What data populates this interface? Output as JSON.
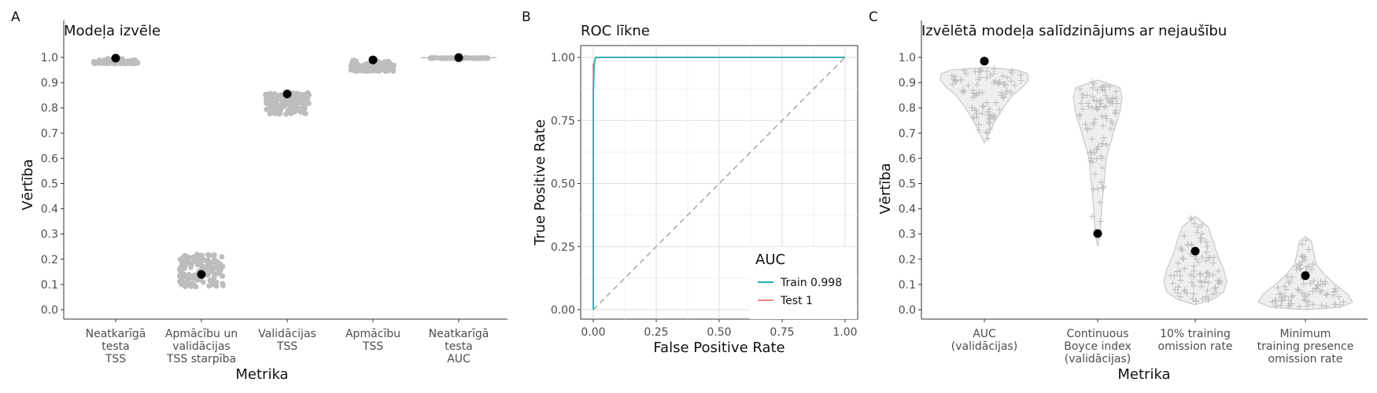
{
  "chart_data": [
    {
      "panel": "A",
      "type": "scatter",
      "title": "Modeļa izvēle",
      "xlabel": "Metrika",
      "ylabel": "Vērtība",
      "ylim": [
        0,
        1
      ],
      "yticks": [
        "0.0",
        "0.1",
        "0.2",
        "0.3",
        "0.4",
        "0.5",
        "0.6",
        "0.7",
        "0.8",
        "0.9",
        "1.0"
      ],
      "categories": [
        [
          "Neatkarīgā",
          "testa",
          "TSS"
        ],
        [
          "Apmācību un",
          "validācijas",
          "TSS starpība"
        ],
        [
          "Validācijas",
          "TSS"
        ],
        [
          "Apmācību",
          "TSS"
        ],
        [
          "Neatkarīgā",
          "testa",
          "AUC"
        ]
      ],
      "series": [
        {
          "kind": "candidates",
          "color": "#bdbdbd",
          "ranges": [
            [
              0.975,
              1.0
            ],
            [
              0.09,
              0.22
            ],
            [
              0.775,
              0.86
            ],
            [
              0.945,
              1.0
            ],
            [
              0.996,
              1.0
            ]
          ]
        },
        {
          "kind": "selected",
          "color": "#000000",
          "values": [
            0.997,
            0.14,
            0.855,
            0.99,
            0.999
          ]
        }
      ]
    },
    {
      "panel": "B",
      "type": "line",
      "title": "ROC līkne",
      "xlabel": "False Positive Rate",
      "ylabel": "True Positive Rate",
      "xlim": [
        0,
        1
      ],
      "ylim": [
        0,
        1
      ],
      "xticks": [
        "0.00",
        "0.25",
        "0.50",
        "0.75",
        "1.00"
      ],
      "yticks": [
        "0.00",
        "0.25",
        "0.50",
        "0.75",
        "1.00"
      ],
      "grid": true,
      "legend": {
        "title": "AUC",
        "position": "bottom-right"
      },
      "series": [
        {
          "label": "Train 0.998",
          "color": "#1fb5b5",
          "x": [
            0,
            0.0,
            0.003,
            0.006,
            0.01,
            0.02,
            1.0
          ],
          "y": [
            0,
            0.85,
            0.95,
            0.99,
            1.0,
            1.0,
            1.0
          ]
        },
        {
          "label": "Test 1",
          "color": "#f08080",
          "x": [
            0,
            0.0,
            0.01,
            1.0
          ],
          "y": [
            0,
            0.97,
            1.0,
            1.0
          ]
        },
        {
          "kind": "reference",
          "color": "#aaaaaa",
          "x": [
            0,
            1
          ],
          "y": [
            0,
            1
          ]
        }
      ]
    },
    {
      "panel": "C",
      "type": "violin",
      "title": "Izvēlētā modeļa salīdzinājums ar nejaušību",
      "xlabel": "Metrika",
      "ylabel": "Vērtība",
      "ylim": [
        0,
        1
      ],
      "yticks": [
        "0.0",
        "0.1",
        "0.2",
        "0.3",
        "0.4",
        "0.5",
        "0.6",
        "0.7",
        "0.8",
        "0.9",
        "1.0"
      ],
      "categories": [
        [
          "AUC",
          "(validācijas)"
        ],
        [
          "Continuous",
          "Boyce index",
          "(validācijas)"
        ],
        [
          "10% training",
          "omission rate"
        ],
        [
          "Minimum",
          "training presence",
          "omission rate"
        ]
      ],
      "series": [
        {
          "kind": "null-distribution",
          "color": "#bdbdbd",
          "ranges": [
            [
              0.66,
              0.96
            ],
            [
              0.25,
              0.91
            ],
            [
              0.02,
              0.37
            ],
            [
              0.0,
              0.29
            ]
          ]
        },
        {
          "kind": "selected",
          "color": "#000000",
          "values": [
            0.985,
            0.302,
            0.232,
            0.135
          ]
        }
      ]
    }
  ]
}
